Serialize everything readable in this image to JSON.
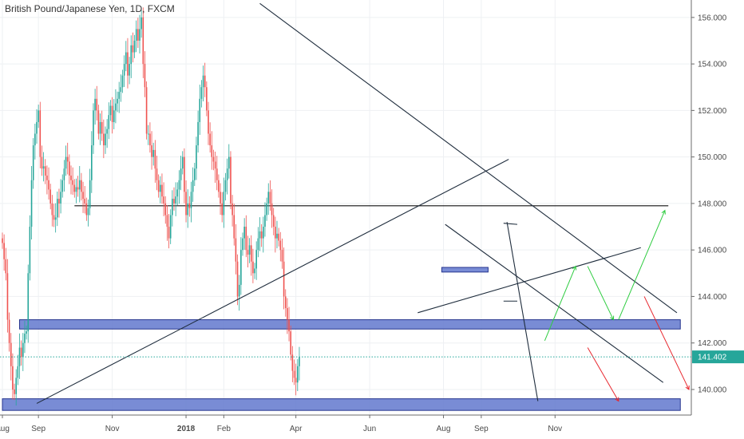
{
  "chart_data": {
    "type": "candlestick",
    "title": "British Pound/Japanese Yen, 1D, FXCM",
    "y_ticks": [
      140,
      142,
      144,
      146,
      148,
      150,
      152,
      154,
      156
    ],
    "y_tick_labels": [
      "140.000",
      "142.000",
      "144.000",
      "146.000",
      "148.000",
      "150.000",
      "152.000",
      "154.000",
      "156.000"
    ],
    "ylim": [
      138.9,
      156.75
    ],
    "x_labels": [
      {
        "label": "Aug",
        "bar": 0,
        "bold": false
      },
      {
        "label": "Sep",
        "bar": 21,
        "bold": false
      },
      {
        "label": "Nov",
        "bar": 64,
        "bold": false
      },
      {
        "label": "2018",
        "bar": 107,
        "bold": true
      },
      {
        "label": "Feb",
        "bar": 129,
        "bold": false
      },
      {
        "label": "Apr",
        "bar": 171,
        "bold": false
      },
      {
        "label": "Jun",
        "bar": 214,
        "bold": false
      },
      {
        "label": "Aug",
        "bar": 257,
        "bold": false
      },
      {
        "label": "Sep",
        "bar": 279,
        "bold": false
      },
      {
        "label": "Nov",
        "bar": 322,
        "bold": false
      }
    ],
    "current_price": 141.402,
    "current_price_label": "141.402",
    "close_series": [
      146.3,
      145.6,
      145.0,
      143.0,
      142.0,
      141.0,
      140.0,
      139.8,
      140.5,
      141.0,
      141.8,
      141.4,
      142.0,
      142.4,
      142.5,
      145.0,
      147.0,
      149.0,
      150.5,
      151.0,
      151.5,
      152.0,
      150.0,
      149.5,
      149.6,
      149.2,
      149.0,
      148.6,
      148.0,
      147.5,
      147.3,
      147.4,
      148.2,
      148.0,
      148.5,
      149.0,
      149.5,
      150.0,
      149.8,
      149.2,
      149.0,
      148.8,
      148.5,
      148.7,
      148.6,
      149.0,
      148.5,
      148.2,
      148.0,
      147.5,
      147.8,
      149.0,
      150.5,
      152.0,
      152.5,
      152.0,
      151.0,
      151.5,
      151.0,
      150.5,
      151.0,
      151.2,
      151.8,
      152.2,
      151.5,
      152.0,
      152.3,
      152.5,
      152.8,
      153.0,
      153.5,
      154.0,
      154.5,
      153.5,
      154.0,
      154.8,
      154.5,
      155.0,
      155.5,
      155.0,
      155.5,
      156.0,
      154.0,
      153.0,
      151.0,
      151.0,
      150.5,
      150.0,
      150.3,
      149.5,
      149.0,
      148.5,
      148.8,
      148.3,
      148.0,
      147.5,
      147.0,
      146.5,
      147.5,
      148.2,
      148.0,
      148.3,
      148.6,
      149.0,
      149.5,
      150.0,
      148.5,
      147.5,
      148.0,
      147.8,
      148.5,
      149.0,
      149.5,
      150.5,
      151.5,
      152.5,
      153.0,
      153.5,
      153.0,
      152.0,
      151.0,
      150.5,
      150.0,
      149.8,
      149.5,
      149.0,
      148.5,
      148.0,
      147.5,
      148.5,
      149.0,
      149.5,
      150.0,
      148.0,
      147.5,
      146.5,
      145.5,
      144.0,
      144.5,
      146.0,
      146.5,
      147.0,
      146.0,
      145.8,
      146.2,
      145.5,
      145.0,
      145.2,
      146.0,
      146.5,
      146.8,
      146.5,
      147.0,
      147.5,
      148.0,
      148.5,
      148.0,
      147.5,
      147.0,
      146.5,
      146.7,
      146.4,
      146.0,
      145.5,
      144.0,
      143.5,
      143.0,
      142.5,
      141.5,
      140.8,
      140.5,
      140.3,
      141.0,
      141.4
    ],
    "levels": [
      {
        "type": "zone",
        "name": "resistance-zone",
        "y_top": 143.0,
        "y_bottom": 142.6,
        "x_start_bar": 10,
        "x_end_bar": 395
      },
      {
        "type": "zone",
        "name": "support-zone",
        "y_top": 139.6,
        "y_bottom": 139.1,
        "x_start_bar": 0,
        "x_end_bar": 395
      },
      {
        "type": "hline",
        "name": "horizontal-148",
        "y": 147.9,
        "x_start_bar": 42,
        "x_end_bar": 388
      },
      {
        "type": "small-zone",
        "name": "mini-zone",
        "y_top": 145.25,
        "y_bottom": 145.05,
        "x_start_bar": 256,
        "x_end_bar": 283
      }
    ],
    "annotations": [
      "descending trendline",
      "ascending trendline",
      "rising wedge upper line",
      "rising wedge lower line",
      "projected green up arrows",
      "projected red down arrows"
    ],
    "colors": {
      "up": "#26a69a",
      "down": "#ef5350",
      "zone_fill": "#7286d3",
      "zone_stroke": "#1c2c8a",
      "price_tag": "#26a69a",
      "trendline": "#1f2d3d",
      "arrow_up": "#2ecc40",
      "arrow_down": "#e8282f",
      "grid": "#eef0f3",
      "axis": "#4a4a4a"
    }
  }
}
